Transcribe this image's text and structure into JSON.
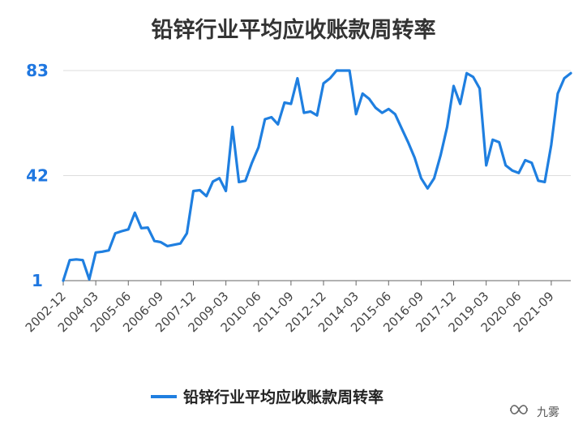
{
  "chart_data": {
    "type": "line",
    "title": "铅锌行业平均应收账款周转率",
    "xlabel": "",
    "ylabel": "",
    "ylim": [
      1,
      83
    ],
    "yticks": [
      1,
      42,
      83
    ],
    "xtick_labels": [
      "2002-12",
      "2004-03",
      "2005-06",
      "2006-09",
      "2007-12",
      "2009-03",
      "2010-06",
      "2011-09",
      "2012-12",
      "2014-03",
      "2015-06",
      "2016-09",
      "2017-12",
      "2019-03",
      "2020-06",
      "2021-09"
    ],
    "grid": true,
    "legend_position": "bottom",
    "series": [
      {
        "name": "铅锌行业平均应收账款周转率",
        "color": "#1f7fe0",
        "values": [
          1,
          9,
          9.3,
          9,
          1.5,
          12,
          12.3,
          12.8,
          19.5,
          20.3,
          21,
          27.5,
          21.5,
          21.7,
          16.5,
          16,
          14.5,
          15,
          15.5,
          19.5,
          36,
          36.3,
          34,
          39.7,
          41,
          36,
          61,
          39.5,
          40,
          47,
          53,
          64,
          64.8,
          62,
          70.5,
          70,
          80,
          66.5,
          67,
          65.5,
          78,
          80,
          85,
          88,
          84,
          66,
          74,
          72,
          68.5,
          66.5,
          68,
          66,
          60.5,
          55,
          49,
          41,
          37,
          41,
          50,
          61,
          77,
          70,
          82,
          80.5,
          76,
          46,
          56,
          55,
          46,
          44,
          43,
          48,
          47,
          40,
          39.5,
          54,
          74,
          80,
          82
        ]
      }
    ]
  },
  "watermark": {
    "text": "九雾",
    "icon": "wechat-channel-icon"
  }
}
